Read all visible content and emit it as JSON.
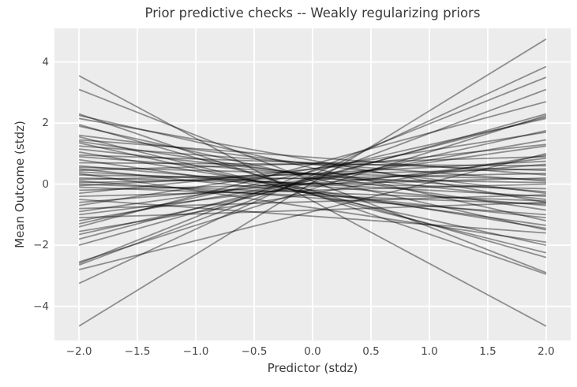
{
  "colors": {
    "figure_bg": "#ffffff",
    "plot_bg": "#ececec",
    "grid": "#ffffff",
    "line": "#000000",
    "line_alpha": 0.4,
    "title_text": "#3a3a3a",
    "tick_text": "#474747"
  },
  "chart_data": {
    "type": "line",
    "title": "Prior predictive checks -- Weakly regularizing priors",
    "xlabel": "Predictor (stdz)",
    "ylabel": "Mean Outcome (stdz)",
    "grid": true,
    "legend": false,
    "xlim": [
      -2.21,
      2.21
    ],
    "ylim": [
      -5.12,
      5.1
    ],
    "xticks": [
      -2.0,
      -1.5,
      -1.0,
      -0.5,
      0.0,
      0.5,
      1.0,
      1.5,
      2.0
    ],
    "xtick_labels": [
      "−2.0",
      "−1.5",
      "−1.0",
      "−0.5",
      "0.0",
      "0.5",
      "1.0",
      "1.5",
      "2.0"
    ],
    "yticks": [
      -4,
      -2,
      0,
      2,
      4
    ],
    "ytick_labels": [
      "−4",
      "−2",
      "0",
      "2",
      "4"
    ],
    "line_x": [
      -2,
      2
    ],
    "lines_note": "each entry is [y at x=-2, y at x=+2] for one prior predictive draw",
    "lines": [
      [
        3.55,
        -4.65
      ],
      [
        3.1,
        -2.9
      ],
      [
        2.3,
        -2.95
      ],
      [
        2.25,
        -1.2
      ],
      [
        2.15,
        -0.6
      ],
      [
        1.95,
        -2.4
      ],
      [
        1.9,
        -1.5
      ],
      [
        1.6,
        -0.3
      ],
      [
        1.55,
        -2.25
      ],
      [
        1.45,
        0.3
      ],
      [
        1.4,
        -0.85
      ],
      [
        1.35,
        -2.0
      ],
      [
        1.25,
        0.1
      ],
      [
        1.15,
        -0.5
      ],
      [
        1.05,
        -1.45
      ],
      [
        0.95,
        0.45
      ],
      [
        0.9,
        -0.25
      ],
      [
        0.8,
        -1.35
      ],
      [
        0.7,
        0.6
      ],
      [
        0.6,
        -0.7
      ],
      [
        0.55,
        0.15
      ],
      [
        0.5,
        -1.1
      ],
      [
        0.45,
        0.9
      ],
      [
        0.4,
        -0.4
      ],
      [
        0.35,
        -1.9
      ],
      [
        0.3,
        0.05
      ],
      [
        0.2,
        -0.15
      ],
      [
        0.15,
        0.5
      ],
      [
        0.1,
        -1.0
      ],
      [
        0.05,
        0.35
      ],
      [
        0.0,
        -0.55
      ],
      [
        -0.05,
        0.75
      ],
      [
        -0.1,
        -0.65
      ],
      [
        -0.2,
        0.2
      ],
      [
        -0.3,
        1.3
      ],
      [
        -0.4,
        0.0
      ],
      [
        -0.5,
        -1.6
      ],
      [
        -0.6,
        0.65
      ],
      [
        -0.7,
        1.7
      ],
      [
        -0.8,
        -0.35
      ],
      [
        -0.9,
        1.25
      ],
      [
        -1.0,
        0.85
      ],
      [
        -1.1,
        -0.6
      ],
      [
        -1.2,
        1.45
      ],
      [
        -1.3,
        2.15
      ],
      [
        -1.4,
        2.7
      ],
      [
        -1.55,
        0.95
      ],
      [
        -1.65,
        1.75
      ],
      [
        -1.8,
        2.2
      ],
      [
        -2.0,
        2.3
      ],
      [
        -2.55,
        2.25
      ],
      [
        -2.6,
        3.5
      ],
      [
        -2.65,
        3.1
      ],
      [
        -2.8,
        1.0
      ],
      [
        -3.25,
        3.85
      ],
      [
        -4.65,
        4.75
      ]
    ]
  }
}
